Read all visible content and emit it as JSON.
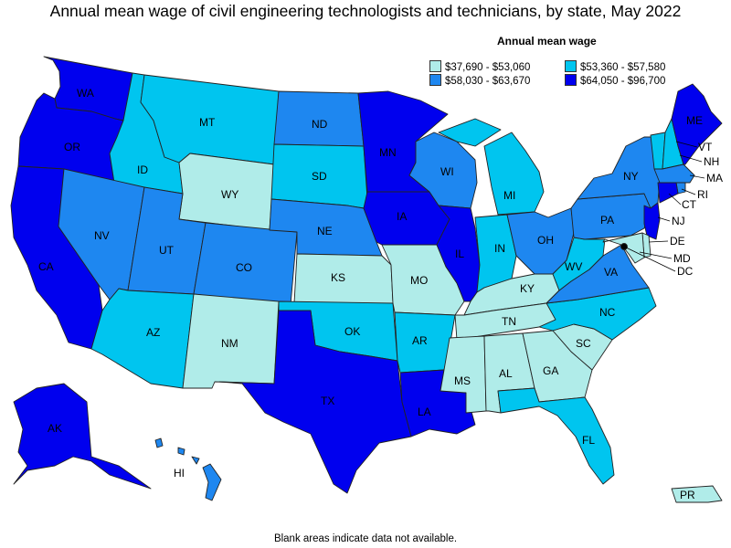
{
  "title": "Annual mean wage of civil engineering technologists and technicians, by state, May 2022",
  "legend": {
    "title": "Annual mean wage",
    "items": [
      {
        "label": "$37,690 - $53,060",
        "color": "#b0ece9",
        "tier": 1
      },
      {
        "label": "$53,360 - $57,580",
        "color": "#00c5ef",
        "tier": 2
      },
      {
        "label": "$58,030 - $63,670",
        "color": "#1e87f0",
        "tier": 3
      },
      {
        "label": "$64,050 - $96,700",
        "color": "#0000ee",
        "tier": 4
      }
    ]
  },
  "footnote": "Blank areas indicate data not available.",
  "states": [
    {
      "abbr": "WA",
      "tier": 4
    },
    {
      "abbr": "OR",
      "tier": 4
    },
    {
      "abbr": "CA",
      "tier": 4
    },
    {
      "abbr": "ID",
      "tier": 2
    },
    {
      "abbr": "NV",
      "tier": 3
    },
    {
      "abbr": "MT",
      "tier": 2
    },
    {
      "abbr": "WY",
      "tier": 1
    },
    {
      "abbr": "UT",
      "tier": 3
    },
    {
      "abbr": "CO",
      "tier": 3
    },
    {
      "abbr": "AZ",
      "tier": 2
    },
    {
      "abbr": "NM",
      "tier": 1
    },
    {
      "abbr": "ND",
      "tier": 3
    },
    {
      "abbr": "SD",
      "tier": 2
    },
    {
      "abbr": "NE",
      "tier": 3
    },
    {
      "abbr": "KS",
      "tier": 1
    },
    {
      "abbr": "OK",
      "tier": 2
    },
    {
      "abbr": "TX",
      "tier": 4
    },
    {
      "abbr": "MN",
      "tier": 4
    },
    {
      "abbr": "IA",
      "tier": 4
    },
    {
      "abbr": "MO",
      "tier": 1
    },
    {
      "abbr": "AR",
      "tier": 2
    },
    {
      "abbr": "LA",
      "tier": 4
    },
    {
      "abbr": "WI",
      "tier": 3
    },
    {
      "abbr": "IL",
      "tier": 4
    },
    {
      "abbr": "MI",
      "tier": 2
    },
    {
      "abbr": "IN",
      "tier": 2
    },
    {
      "abbr": "OH",
      "tier": 3
    },
    {
      "abbr": "KY",
      "tier": 1
    },
    {
      "abbr": "TN",
      "tier": 1
    },
    {
      "abbr": "MS",
      "tier": 1
    },
    {
      "abbr": "AL",
      "tier": 1
    },
    {
      "abbr": "GA",
      "tier": 1
    },
    {
      "abbr": "FL",
      "tier": 2
    },
    {
      "abbr": "SC",
      "tier": 1
    },
    {
      "abbr": "NC",
      "tier": 2
    },
    {
      "abbr": "VA",
      "tier": 3
    },
    {
      "abbr": "WV",
      "tier": 2
    },
    {
      "abbr": "PA",
      "tier": 3
    },
    {
      "abbr": "NY",
      "tier": 3
    },
    {
      "abbr": "VT",
      "tier": 2
    },
    {
      "abbr": "NH",
      "tier": 2
    },
    {
      "abbr": "ME",
      "tier": 4
    },
    {
      "abbr": "MA",
      "tier": 3
    },
    {
      "abbr": "RI",
      "tier": 3
    },
    {
      "abbr": "CT",
      "tier": 4
    },
    {
      "abbr": "NJ",
      "tier": 4
    },
    {
      "abbr": "DE",
      "tier": 1
    },
    {
      "abbr": "MD",
      "tier": 1
    },
    {
      "abbr": "DC",
      "tier": 4
    },
    {
      "abbr": "AK",
      "tier": 4
    },
    {
      "abbr": "HI",
      "tier": 3
    },
    {
      "abbr": "PR",
      "tier": 1
    }
  ]
}
